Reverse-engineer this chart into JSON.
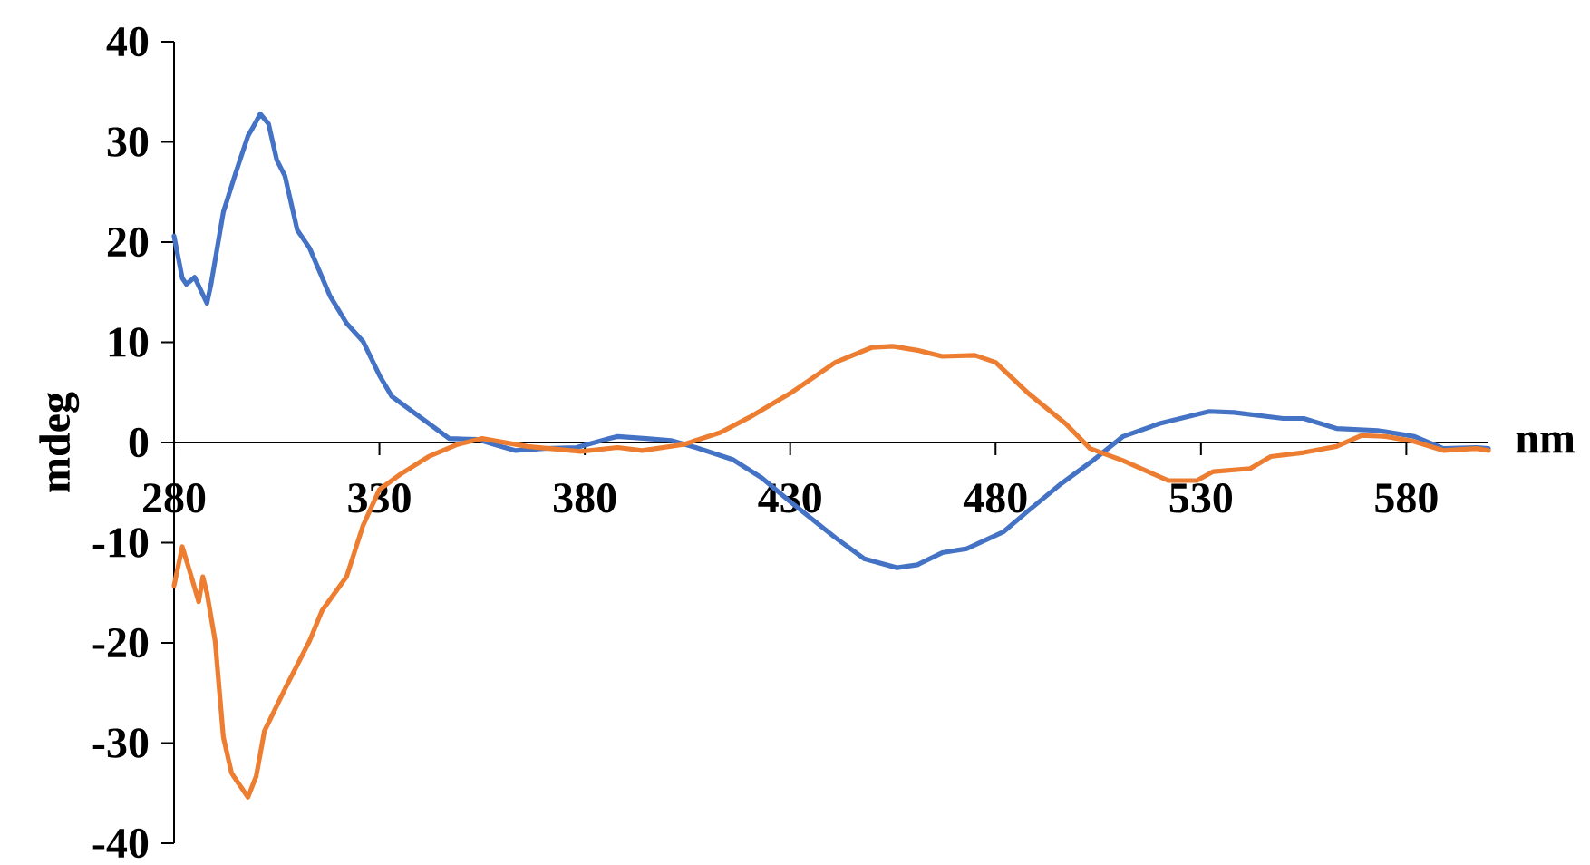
{
  "chart_data": {
    "type": "line",
    "xlabel": "nm",
    "ylabel": "mdeg",
    "xlim": [
      280,
      600
    ],
    "ylim": [
      -40,
      40
    ],
    "xticks": [
      280,
      330,
      380,
      430,
      480,
      530,
      580
    ],
    "yticks": [
      -40,
      -30,
      -20,
      -10,
      0,
      10,
      20,
      30,
      40
    ],
    "marker": "none",
    "line_style": "solid",
    "series": [
      {
        "color": "#4472c4",
        "x": [
          280,
          282,
          283,
          285,
          288,
          289,
          292,
          295,
          298,
          299,
          301,
          303,
          305,
          307,
          310,
          313,
          318,
          322,
          326,
          330,
          333,
          340,
          347,
          354,
          358,
          363,
          370,
          378,
          386,
          388,
          395,
          401,
          407,
          416,
          423,
          430,
          441,
          448,
          456,
          461,
          467,
          473,
          482,
          488,
          496,
          504,
          511,
          520,
          532,
          538,
          550,
          555,
          563,
          573,
          582,
          589,
          597,
          600
        ],
        "values": [
          20.6,
          16.4,
          15.8,
          16.5,
          13.9,
          15.8,
          23.0,
          26.9,
          30.6,
          31.3,
          32.8,
          31.8,
          28.2,
          26.6,
          21.2,
          19.4,
          14.6,
          11.9,
          10.1,
          6.7,
          4.6,
          2.5,
          0.4,
          0.3,
          -0.2,
          -0.8,
          -0.6,
          -0.5,
          0.4,
          0.6,
          0.4,
          0.2,
          -0.5,
          -1.7,
          -3.5,
          -5.9,
          -9.5,
          -11.6,
          -12.5,
          -12.2,
          -11.0,
          -10.6,
          -8.9,
          -6.8,
          -4.1,
          -1.7,
          0.6,
          1.9,
          3.1,
          3.0,
          2.4,
          2.4,
          1.4,
          1.2,
          0.6,
          -0.6,
          -0.5,
          -0.6
        ]
      },
      {
        "color": "#ed7d31",
        "x": [
          280,
          282,
          284,
          286,
          287,
          288,
          290,
          291,
          292,
          294,
          298,
          300,
          302,
          307,
          313,
          316,
          322,
          326,
          330,
          335,
          342,
          349,
          355,
          366,
          379,
          388,
          394,
          404,
          413,
          420,
          430,
          441,
          450,
          455,
          461,
          467,
          475,
          480,
          488,
          497,
          503,
          511,
          522,
          529,
          533,
          542,
          547,
          555,
          563,
          569,
          575,
          582,
          589,
          597,
          600
        ],
        "values": [
          -14.3,
          -10.4,
          -13.1,
          -15.9,
          -13.4,
          -15.0,
          -19.8,
          -24.6,
          -29.4,
          -33.0,
          -35.4,
          -33.3,
          -28.8,
          -24.6,
          -19.8,
          -16.8,
          -13.4,
          -8.3,
          -4.7,
          -3.2,
          -1.4,
          -0.2,
          0.4,
          -0.4,
          -0.9,
          -0.5,
          -0.8,
          -0.2,
          1.0,
          2.5,
          4.9,
          8.0,
          9.5,
          9.6,
          9.2,
          8.6,
          8.7,
          8.0,
          4.9,
          1.9,
          -0.6,
          -1.8,
          -3.8,
          -3.8,
          -2.9,
          -2.6,
          -1.4,
          -1.0,
          -0.4,
          0.7,
          0.6,
          0.1,
          -0.8,
          -0.6,
          -0.8
        ]
      }
    ]
  }
}
